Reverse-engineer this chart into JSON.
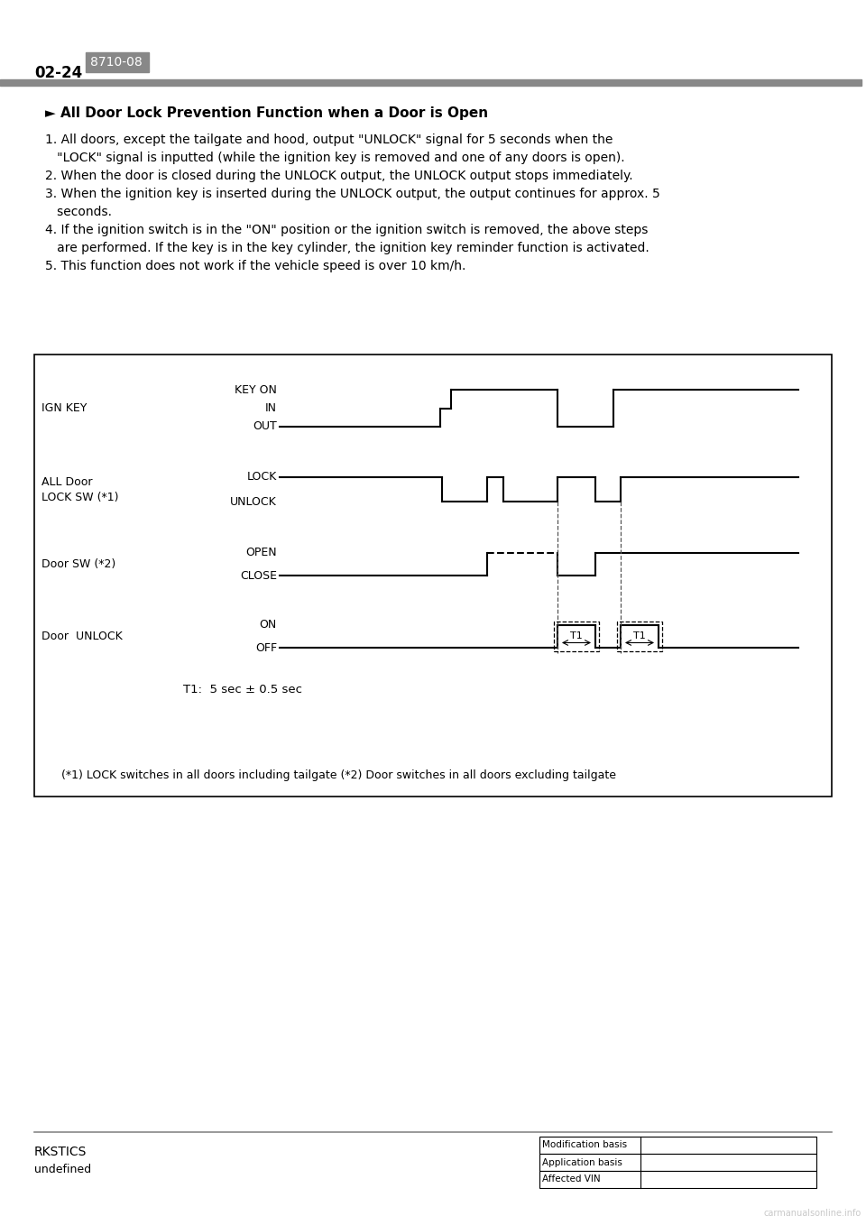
{
  "page_number": "02-24",
  "section_code": "8710-08",
  "title": "► All Door Lock Prevention Function when a Door is Open",
  "body_text": [
    {
      "text": "1. All doors, except the tailgate and hood, output \"UNLOCK\" signal for 5 seconds when the",
      "indent": 0
    },
    {
      "text": "   \"LOCK\" signal is inputted (while the ignition key is removed and one of any doors is open).",
      "indent": 0
    },
    {
      "text": "2. When the door is closed during the UNLOCK output, the UNLOCK output stops immediately.",
      "indent": 0
    },
    {
      "text": "3. When the ignition key is inserted during the UNLOCK output, the output continues for approx. 5",
      "indent": 0
    },
    {
      "text": "   seconds.",
      "indent": 0
    },
    {
      "text": "4. If the ignition switch is in the \"ON\" position or the ignition switch is removed, the above steps",
      "indent": 0
    },
    {
      "text": "   are performed. If the key is in the key cylinder, the ignition key reminder function is activated.",
      "indent": 0
    },
    {
      "text": "5. This function does not work if the vehicle speed is over 10 km/h.",
      "indent": 0
    }
  ],
  "t1_label": "T1:  5 sec ± 0.5 sec",
  "footnote": "(*1) LOCK switches in all doors including tailgate (*2) Door switches in all doors excluding tailgate",
  "footer_left_top": "RKSTICS",
  "footer_left_bottom": "undefined",
  "footer_table": [
    "Modification basis",
    "Application basis",
    "Affected VIN"
  ],
  "background_color": "#ffffff",
  "header_bar_color": "#888888",
  "section_bg_color": "#888888"
}
